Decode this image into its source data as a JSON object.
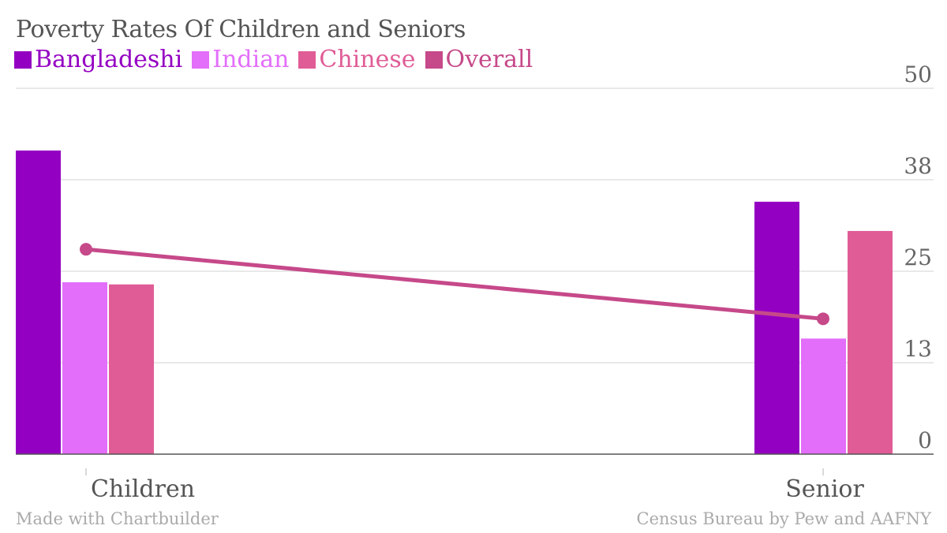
{
  "chart_data": {
    "type": "bar",
    "title": "Poverty Rates Of Children and Seniors",
    "categories": [
      "Children",
      "Senior"
    ],
    "series": [
      {
        "name": "Bangladeshi",
        "type": "bar",
        "color": "#9400c2",
        "values": [
          41.5,
          34.5
        ]
      },
      {
        "name": "Indian",
        "type": "bar",
        "color": "#e36efa",
        "values": [
          23.5,
          15.8
        ]
      },
      {
        "name": "Chinese",
        "type": "bar",
        "color": "#e05c96",
        "values": [
          23.2,
          30.5
        ]
      },
      {
        "name": "Overall",
        "type": "line",
        "color": "#c6498a",
        "values": [
          28,
          18.5
        ]
      }
    ],
    "yticks": [
      "0",
      "13",
      "25",
      "38",
      "50"
    ],
    "ylim": [
      0,
      50
    ],
    "grid": true,
    "legend": "top-left"
  },
  "footer": {
    "left": "Made with Chartbuilder",
    "right": "Census Bureau by Pew and AAFNY"
  }
}
